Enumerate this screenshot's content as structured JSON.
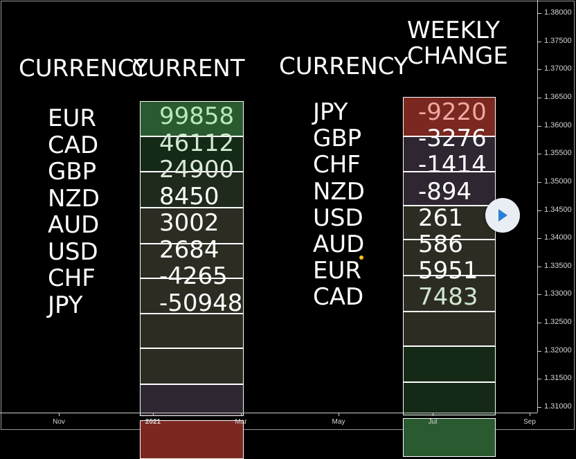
{
  "chart_data": {
    "type": "table",
    "tables": [
      {
        "currency_header": "CURRENCY",
        "value_header": "CURRENT",
        "rows": [
          {
            "currency": "EUR",
            "value": "99858",
            "fill": "#2a5a30",
            "text_color": "#b8eab8"
          },
          {
            "currency": "CAD",
            "value": "46112",
            "fill": "#142a16",
            "text_color": "#cfe8cf"
          },
          {
            "currency": "GBP",
            "value": "24900",
            "fill": "#202a1c",
            "text_color": "#e0e8dc"
          },
          {
            "currency": "NZD",
            "value": "8450",
            "fill": "#2c2c22",
            "text_color": "#ffffff"
          },
          {
            "currency": "AUD",
            "value": "3002",
            "fill": "#2c2c22",
            "text_color": "#ffffff"
          },
          {
            "currency": "USD",
            "value": "2684",
            "fill": "#2c2c22",
            "text_color": "#ffffff"
          },
          {
            "currency": "CHF",
            "value": "-4265",
            "fill": "#2c2c22",
            "text_color": "#ffffff"
          },
          {
            "currency": "JPY",
            "value": "-50948",
            "fill": "#2c2c22",
            "text_color": "#ffffff"
          },
          {
            "currency": "",
            "value": "",
            "fill": "#2e2630",
            "text_color": "#ffffff"
          },
          {
            "currency": "",
            "value": "",
            "fill": "#7a2820",
            "text_color": "#ffffff"
          }
        ]
      },
      {
        "currency_header": "CURRENCY",
        "value_header_line1": "WEEKLY",
        "value_header_line2": "CHANGE",
        "rows": [
          {
            "currency": "JPY",
            "value": "-9220",
            "fill": "#7a2820",
            "text_color": "#f0a8a0"
          },
          {
            "currency": "GBP",
            "value": "-3276",
            "fill": "#2e2630",
            "text_color": "#ffffff"
          },
          {
            "currency": "CHF",
            "value": "-1414",
            "fill": "#2e2630",
            "text_color": "#ffffff"
          },
          {
            "currency": "NZD",
            "value": "-894",
            "fill": "#2c2c22",
            "text_color": "#ffffff"
          },
          {
            "currency": "USD",
            "value": "261",
            "fill": "#2c2c22",
            "text_color": "#ffffff"
          },
          {
            "currency": "AUD",
            "value": "586",
            "fill": "#2c2c22",
            "text_color": "#ffffff"
          },
          {
            "currency": "EUR",
            "value": "5951",
            "fill": "#2c2c22",
            "text_color": "#ffffff"
          },
          {
            "currency": "CAD",
            "value": "7483",
            "fill": "#142a16",
            "text_color": "#cfe8cf"
          },
          {
            "currency": "",
            "value": "",
            "fill": "#142a16",
            "text_color": "#ffffff"
          },
          {
            "currency": "",
            "value": "",
            "fill": "#2a5a30",
            "text_color": "#ffffff"
          }
        ]
      }
    ],
    "price_axis": {
      "labels": [
        "1.38000",
        "1.37500",
        "1.37000",
        "1.36500",
        "1.36000",
        "1.35500",
        "1.35000",
        "1.34500",
        "1.34000",
        "1.33500",
        "1.33000",
        "1.32500",
        "1.32000",
        "1.31500",
        "1.31000"
      ],
      "range": [
        1.31,
        1.38
      ]
    },
    "time_axis": {
      "labels": [
        "Nov",
        "2021",
        "Mar",
        "May",
        "Jul",
        "Sep"
      ]
    }
  },
  "colors": {
    "background": "#000000",
    "text": "#ffffff",
    "axis_text": "#d6d6d6",
    "marker": "#f5c518",
    "play_button_bg": "#e9eef5",
    "play_icon": "#2a7fd4"
  },
  "icons": {
    "play": "play-icon",
    "marker": "dot-marker-icon"
  }
}
